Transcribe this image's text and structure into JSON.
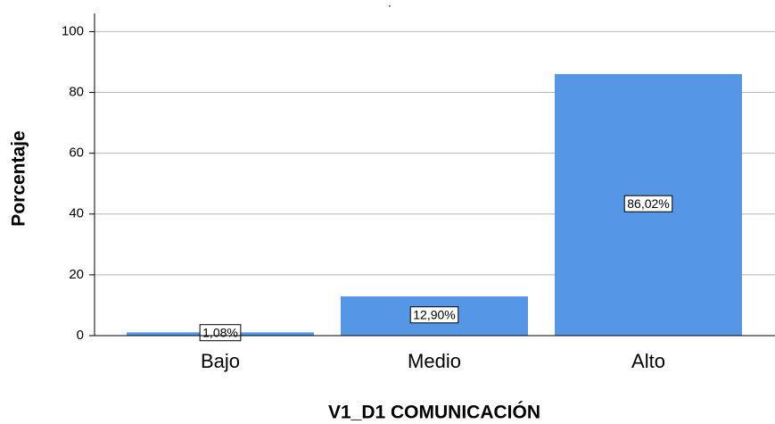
{
  "chart_data": {
    "type": "bar",
    "title": ".",
    "x_label": "V1_D1 COMUNICACIÓN",
    "y_label": "Porcentaje",
    "categories": [
      "Bajo",
      "Medio",
      "Alto"
    ],
    "values": [
      1.08,
      12.9,
      86.02
    ],
    "value_labels": [
      "1,08%",
      "12,90%",
      "86,02%"
    ],
    "color": "#5596e6",
    "ylim": [
      0,
      106
    ],
    "yticks": [
      0,
      20,
      40,
      60,
      80,
      100
    ],
    "grid": true
  }
}
